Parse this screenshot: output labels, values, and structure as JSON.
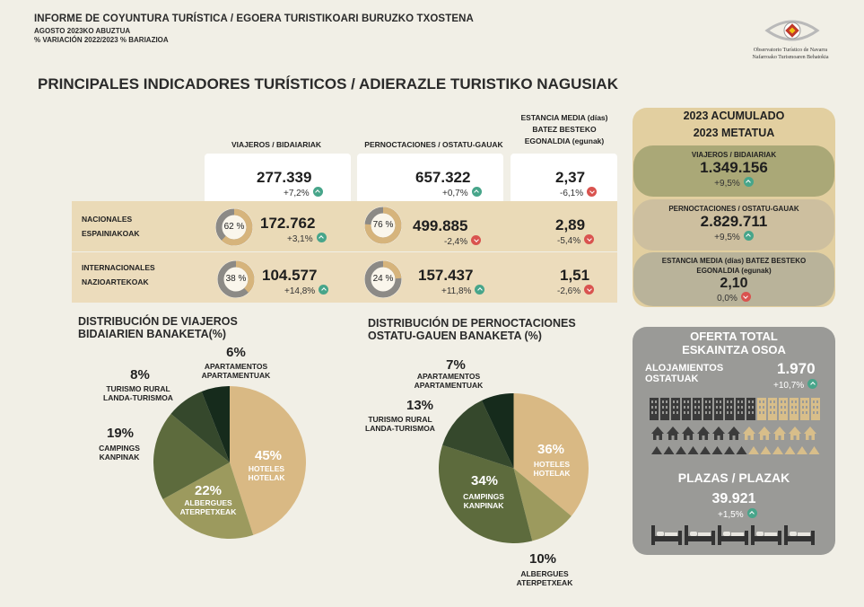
{
  "header": {
    "title": "INFORME DE COYUNTURA TURÍSTICA / EGOERA TURISTIKOARI BURUZKO TXOSTENA",
    "period": "AGOSTO 2023KO ABUZTUA",
    "note": "% VARIACIÓN 2022/2023 % BARIAZIOA",
    "logo_line1": "Observatorio Turístico de Navarra",
    "logo_line2": "Nafarroako Turismoaren Behatokia"
  },
  "main_title": "PRINCIPALES INDICADORES TURÍSTICOS / ADIERAZLE TURISTIKO NAGUSIAK",
  "columns": {
    "viajeros": "VIAJEROS / BIDAIARIAK",
    "pernoctaciones": "PERNOCTACIONES / OSTATU-GAUAK",
    "estancia_l1": "ESTANCIA MEDIA (días)",
    "estancia_l2": "BATEZ BESTEKO",
    "estancia_l3": "EGONALDIA (egunak)"
  },
  "totals": {
    "viajeros": "277.339",
    "viajeros_chg": "+7,2%",
    "pernoctaciones": "657.322",
    "pernoctaciones_chg": "+0,7%",
    "estancia": "2,37",
    "estancia_chg": "-6,1%"
  },
  "nacionales": {
    "label1": "NACIONALES",
    "label2": "ESPAINIAKOAK",
    "viajeros_share": "62 %",
    "viajeros_share_value": 62,
    "viajeros": "172.762",
    "viajeros_chg": "+3,1%",
    "pernoctaciones_share": "76 %",
    "pernoctaciones_share_value": 76,
    "pernoctaciones": "499.885",
    "pernoctaciones_chg": "-2,4%",
    "estancia": "2,89",
    "estancia_chg": "-5,4%"
  },
  "internacionales": {
    "label1": "INTERNACIONALES",
    "label2": "NAZIOARTEKOAK",
    "viajeros_share": "38 %",
    "viajeros_share_value": 38,
    "viajeros": "104.577",
    "viajeros_chg": "+14,8%",
    "pernoctaciones_share": "24 %",
    "pernoctaciones_share_value": 24,
    "pernoctaciones": "157.437",
    "pernoctaciones_chg": "+11,8%",
    "estancia": "1,51",
    "estancia_chg": "-2,6%"
  },
  "accumulated": {
    "title1": "2023 ACUMULADO",
    "title2": "2023 METATUA",
    "viajeros_label": "VIAJEROS / BIDAIARIAK",
    "viajeros": "1.349.156",
    "viajeros_chg": "+9,5%",
    "pernoctaciones_label": "PERNOCTACIONES / OSTATU-GAUAK",
    "pernoctaciones": "2.829.711",
    "pernoctaciones_chg": "+9,5%",
    "estancia_label1": "ESTANCIA MEDIA (días) BATEZ BESTEKO",
    "estancia_label2": "EGONALDIA (egunak)",
    "estancia": "2,10",
    "estancia_chg": "0,0%"
  },
  "offer": {
    "title1": "OFERTA TOTAL",
    "title2": "ESKAINTZA OSOA",
    "aloj_label1": "ALOJAMIENTOS",
    "aloj_label2": "OSTATUAK",
    "aloj_value": "1.970",
    "aloj_chg": "+10,7%",
    "plazas_title": "PLAZAS / PLAZAK",
    "plazas_value": "39.921",
    "plazas_chg": "+1,5%"
  },
  "colors": {
    "hoteles": "#d9b984",
    "albergues": "#9c9a5e",
    "campings": "#5d6b3d",
    "rural": "#35482c",
    "apartamentos": "#162b1c",
    "donut_main": "#d6b47c",
    "donut_rest": "#8c8a86"
  },
  "chart_data": [
    {
      "type": "pie",
      "title": "DISTRIBUCIÓN DE VIAJEROS",
      "subtitle": "BIDAIARIEN BANAKETA(%)",
      "slices": [
        {
          "pct": "45%",
          "value": 45,
          "label1": "HOTELES",
          "label2": "HOTELAK"
        },
        {
          "pct": "22%",
          "value": 22,
          "label1": "ALBERGUES",
          "label2": "ATERPETXEAK"
        },
        {
          "pct": "19%",
          "value": 19,
          "label1": "CAMPINGS",
          "label2": "KANPINAK"
        },
        {
          "pct": "8%",
          "value": 8,
          "label1": "TURISMO RURAL",
          "label2": "LANDA-TURISMOA"
        },
        {
          "pct": "6%",
          "value": 6,
          "label1": "APARTAMENTOS",
          "label2": "APARTAMENTUAK"
        }
      ]
    },
    {
      "type": "pie",
      "title": "DISTRIBUCIÓN DE PERNOCTACIONES",
      "subtitle": "OSTATU-GAUEN BANAKETA (%)",
      "slices": [
        {
          "pct": "36%",
          "value": 36,
          "label1": "HOTELES",
          "label2": "HOTELAK"
        },
        {
          "pct": "10%",
          "value": 10,
          "label1": "ALBERGUES",
          "label2": "ATERPETXEAK"
        },
        {
          "pct": "34%",
          "value": 34,
          "label1": "CAMPINGS",
          "label2": "KANPINAK"
        },
        {
          "pct": "13%",
          "value": 13,
          "label1": "TURISMO RURAL",
          "label2": "LANDA-TURISMOA"
        },
        {
          "pct": "7%",
          "value": 7,
          "label1": "APARTAMENTOS",
          "label2": "APARTAMENTUAK"
        }
      ]
    }
  ]
}
